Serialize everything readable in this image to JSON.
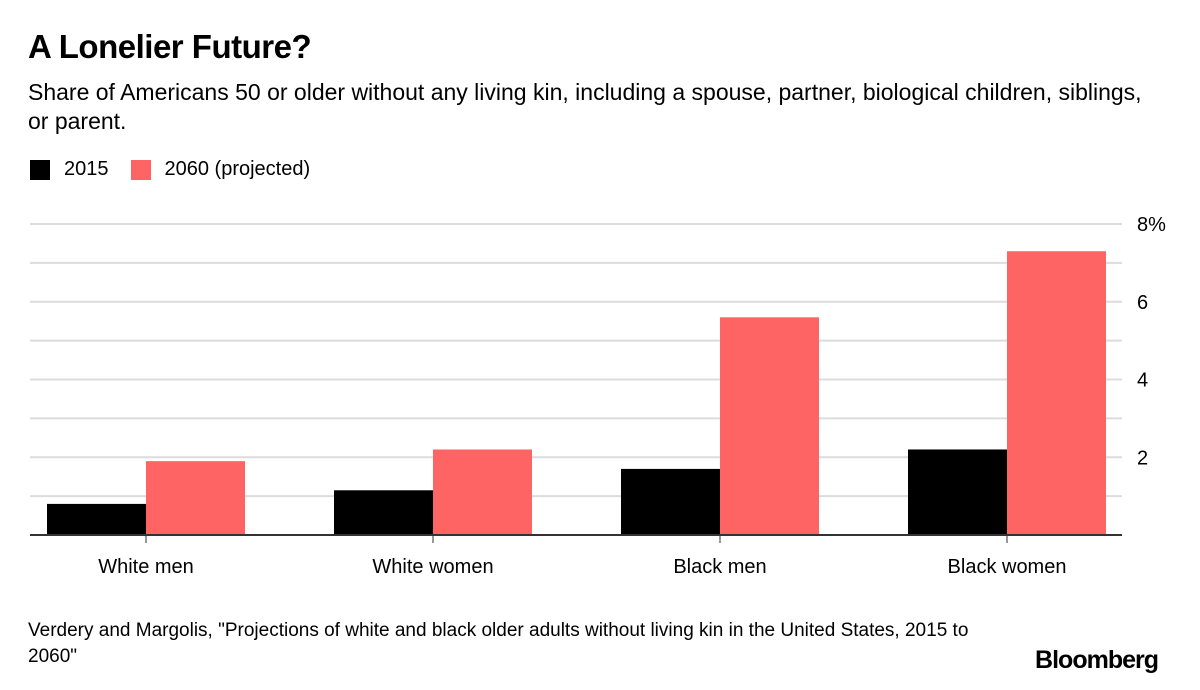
{
  "header": {
    "title": "A Lonelier Future?",
    "subtitle": "Share of Americans 50 or older without any living kin, including a spouse, partner, biological children, siblings, or parent."
  },
  "legend": [
    {
      "label": "2015",
      "color": "#000000"
    },
    {
      "label": "2060 (projected)",
      "color": "#ff6464"
    }
  ],
  "footer": {
    "source": "Verdery and Margolis, \"Projections of white and black older adults without living kin in the United States, 2015 to 2060\"",
    "brand": "Bloomberg"
  },
  "chart_data": {
    "type": "bar",
    "title": "A Lonelier Future?",
    "xlabel": "",
    "ylabel": "",
    "categories": [
      "White men",
      "White women",
      "Black men",
      "Black women"
    ],
    "series": [
      {
        "name": "2015",
        "color": "#000000",
        "values": [
          0.8,
          1.15,
          1.7,
          2.2
        ]
      },
      {
        "name": "2060 (projected)",
        "color": "#ff6464",
        "values": [
          1.9,
          2.2,
          5.6,
          7.3
        ]
      }
    ],
    "ylim": [
      0,
      8
    ],
    "yticks": [
      2,
      4,
      6,
      8
    ],
    "ytick_labels": [
      "2",
      "4",
      "6",
      "8%"
    ],
    "gridlines": [
      1,
      2,
      3,
      4,
      5,
      6,
      7,
      8
    ],
    "grid": true,
    "legend_position": "top-left",
    "y_axis_side": "right"
  }
}
